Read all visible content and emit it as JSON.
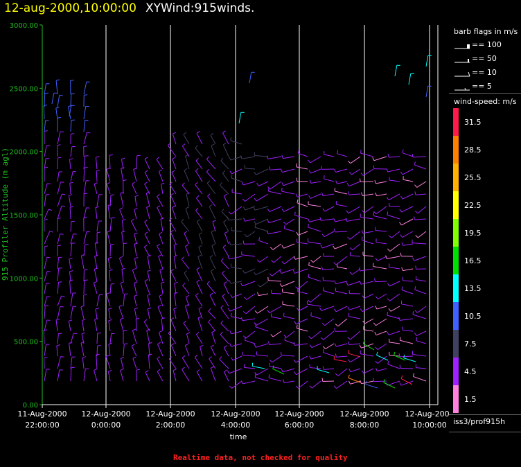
{
  "title": {
    "date": "12-aug-2000,10:00:00",
    "plot": "XYWind:915winds."
  },
  "footer": "Realtime data, not checked for quality",
  "legend": {
    "barb_title": "barb flags in m/s",
    "barbs": [
      "== 100",
      "== 50",
      "== 10",
      "== 5"
    ],
    "speed_title": "wind-speed: m/s",
    "scale": [
      {
        "label": "31.5",
        "color": "#ff1a4a"
      },
      {
        "label": "28.5",
        "color": "#ff8000"
      },
      {
        "label": "25.5",
        "color": "#ffb000"
      },
      {
        "label": "22.5",
        "color": "#ffff00"
      },
      {
        "label": "19.5",
        "color": "#80ff00"
      },
      {
        "label": "16.5",
        "color": "#00e000"
      },
      {
        "label": "13.5",
        "color": "#00ffff"
      },
      {
        "label": "10.5",
        "color": "#4060ff"
      },
      {
        "label": "7.5",
        "color": "#404060"
      },
      {
        "label": "4.5",
        "color": "#a020ff"
      },
      {
        "label": "1.5",
        "color": "#ff80e0"
      }
    ],
    "source": "iss3/prof915h"
  },
  "chart_data": {
    "type": "scatter",
    "xlabel": "time",
    "ylabel": "915 Profiler Altitude (m agl)",
    "ylim": [
      0,
      3000
    ],
    "yticks": [
      "0.00",
      "500.00",
      "1000.00",
      "1500.00",
      "2000.00",
      "2500.00",
      "3000.00"
    ],
    "xticks": [
      {
        "line1": "11-Aug-2000",
        "line2": "22:00:00"
      },
      {
        "line1": "12-Aug-2000",
        "line2": "0:00:00"
      },
      {
        "line1": "12-Aug-2000",
        "line2": "2:00:00"
      },
      {
        "line1": "12-Aug-2000",
        "line2": "4:00:00"
      },
      {
        "line1": "12-Aug-2000",
        "line2": "6:00:00"
      },
      {
        "line1": "12-Aug-2000",
        "line2": "8:00:00"
      },
      {
        "line1": "12-Aug-2000",
        "line2": "10:00:00"
      }
    ],
    "grid": "vertical",
    "colors": {
      "axis": "#20c020",
      "ylabel": "#20c020",
      "grid": "#ffffff"
    }
  }
}
